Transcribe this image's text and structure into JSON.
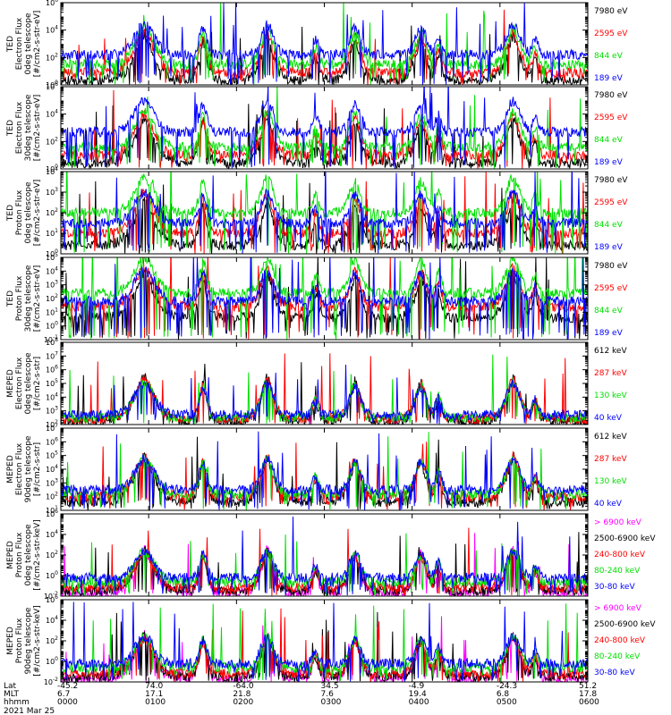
{
  "footer": {
    "row_labels": [
      "Lat",
      "MLT",
      "hhmm"
    ],
    "date": "2021 Mar 25",
    "columns": [
      {
        "lat": "-45.2",
        "mlt": "6.7",
        "hhmm": "0000"
      },
      {
        "lat": "74.0",
        "mlt": "17.1",
        "hhmm": "0100"
      },
      {
        "lat": "-64.0",
        "mlt": "21.8",
        "hhmm": "0200"
      },
      {
        "lat": "34.5",
        "mlt": "7.6",
        "hhmm": "0300"
      },
      {
        "lat": "-4.9",
        "mlt": "19.4",
        "hhmm": "0400"
      },
      {
        "lat": "-24.3",
        "mlt": "6.8",
        "hhmm": "0500"
      },
      {
        "lat": "51.2",
        "mlt": "17.8",
        "hhmm": "0600"
      }
    ]
  },
  "chart_data": [
    {
      "type": "line",
      "ylog": true,
      "ymin_exp": 0,
      "ymax_exp": 6,
      "tick_exps": [
        0,
        2,
        4,
        6
      ],
      "xlim": [
        0,
        6
      ],
      "ylabel": [
        "TED",
        "Electron Flux",
        "0deg telescope",
        "[#/cm2-s-str-eV]"
      ],
      "series": [
        {
          "name": "7980 eV",
          "color": "#000000",
          "base": 0.3
        },
        {
          "name": "2595 eV",
          "color": "#ff0000",
          "base": 0.9
        },
        {
          "name": "844 eV",
          "color": "#00e000",
          "base": 1.5
        },
        {
          "name": "189 eV",
          "color": "#0000ff",
          "base": 2.2
        }
      ]
    },
    {
      "type": "line",
      "ylog": true,
      "ymin_exp": 0,
      "ymax_exp": 6,
      "tick_exps": [
        0,
        2,
        4,
        6
      ],
      "xlim": [
        0,
        6
      ],
      "ylabel": [
        "TED",
        "Electron Flux",
        "30deg telescope",
        "[#/cm2-s-str-eV]"
      ],
      "series": [
        {
          "name": "7980 eV",
          "color": "#000000",
          "base": 0.4
        },
        {
          "name": "2595 eV",
          "color": "#ff0000",
          "base": 1.0
        },
        {
          "name": "844 eV",
          "color": "#00e000",
          "base": 1.6
        },
        {
          "name": "189 eV",
          "color": "#0000ff",
          "base": 2.7
        }
      ]
    },
    {
      "type": "line",
      "ylog": true,
      "ymin_exp": 0,
      "ymax_exp": 4,
      "tick_exps": [
        0,
        1,
        2,
        3,
        4
      ],
      "xlim": [
        0,
        6
      ],
      "ylabel": [
        "TED",
        "Proton Flux",
        "0deg telescope",
        "[#/cm2-s-str-eV]"
      ],
      "series": [
        {
          "name": "7980 eV",
          "color": "#000000",
          "base": 0.4
        },
        {
          "name": "2595 eV",
          "color": "#ff0000",
          "base": 1.0
        },
        {
          "name": "844 eV",
          "color": "#00e000",
          "base": 2.0
        },
        {
          "name": "189 eV",
          "color": "#0000ff",
          "base": 1.5
        }
      ]
    },
    {
      "type": "line",
      "ylog": true,
      "ymin_exp": -1,
      "ymax_exp": 5,
      "tick_exps": [
        -1,
        0,
        1,
        2,
        3,
        4,
        5
      ],
      "xlim": [
        0,
        6
      ],
      "ylabel": [
        "TED",
        "Proton Flux",
        "30deg telescope",
        "[#/cm2-s-str-eV]"
      ],
      "series": [
        {
          "name": "7980 eV",
          "color": "#000000",
          "base": 0.6
        },
        {
          "name": "2595 eV",
          "color": "#ff0000",
          "base": 1.4
        },
        {
          "name": "844 eV",
          "color": "#00e000",
          "base": 2.4
        },
        {
          "name": "189 eV",
          "color": "#0000ff",
          "base": 1.8
        }
      ]
    },
    {
      "type": "line",
      "ylog": true,
      "ymin_exp": 2,
      "ymax_exp": 8,
      "tick_exps": [
        2,
        3,
        4,
        5,
        6,
        7,
        8
      ],
      "xlim": [
        0,
        6
      ],
      "ylabel": [
        "MEPED",
        "Electron Flux",
        "0deg telescope",
        "[#/cm2-s-str]"
      ],
      "series": [
        {
          "name": "612 keV",
          "color": "#000000",
          "base": 2.2
        },
        {
          "name": "287 keV",
          "color": "#ff0000",
          "base": 2.4
        },
        {
          "name": "130 keV",
          "color": "#00e000",
          "base": 2.5
        },
        {
          "name": "40 keV",
          "color": "#0000ff",
          "base": 2.7
        }
      ]
    },
    {
      "type": "line",
      "ylog": true,
      "ymin_exp": 1,
      "ymax_exp": 7,
      "tick_exps": [
        1,
        2,
        3,
        4,
        5,
        6,
        7
      ],
      "xlim": [
        0,
        6
      ],
      "ylabel": [
        "MEPED",
        "Electron Flux",
        "90deg telescope",
        "[#/cm2-s-str]"
      ],
      "series": [
        {
          "name": "612 keV",
          "color": "#000000",
          "base": 1.6
        },
        {
          "name": "287 keV",
          "color": "#ff0000",
          "base": 2.0
        },
        {
          "name": "130 keV",
          "color": "#00e000",
          "base": 2.2
        },
        {
          "name": "40 keV",
          "color": "#0000ff",
          "base": 2.5
        }
      ]
    },
    {
      "type": "line",
      "ylog": true,
      "ymin_exp": -2,
      "ymax_exp": 6,
      "tick_exps": [
        -2,
        0,
        2,
        4,
        6
      ],
      "xlim": [
        0,
        6
      ],
      "ylabel": [
        "MEPED",
        "Proton Flux",
        "0deg telescope",
        "[#/cm2-s-str-keV]"
      ],
      "series": [
        {
          "name": "> 6900 keV",
          "color": "#ff00ff",
          "base": -1.8
        },
        {
          "name": "2500-6900 keV",
          "color": "#000000",
          "base": -1.5
        },
        {
          "name": "240-800 keV",
          "color": "#ff0000",
          "base": -1.2
        },
        {
          "name": "80-240 keV",
          "color": "#00e000",
          "base": -0.6
        },
        {
          "name": "30-80 keV",
          "color": "#0000ff",
          "base": -0.2
        }
      ]
    },
    {
      "type": "line",
      "ylog": true,
      "ymin_exp": -2,
      "ymax_exp": 6,
      "tick_exps": [
        -2,
        0,
        2,
        4,
        6
      ],
      "xlim": [
        0,
        6
      ],
      "ylabel": [
        "MEPED",
        "Proton Flux",
        "90deg telescope",
        "[#/cm2-s-str-keV]"
      ],
      "series": [
        {
          "name": "> 6900 keV",
          "color": "#ff00ff",
          "base": -1.8
        },
        {
          "name": "2500-6900 keV",
          "color": "#000000",
          "base": -1.5
        },
        {
          "name": "240-800 keV",
          "color": "#ff0000",
          "base": -1.2
        },
        {
          "name": "80-240 keV",
          "color": "#00e000",
          "base": -0.6
        },
        {
          "name": "30-80 keV",
          "color": "#0000ff",
          "base": -0.2
        }
      ]
    }
  ]
}
